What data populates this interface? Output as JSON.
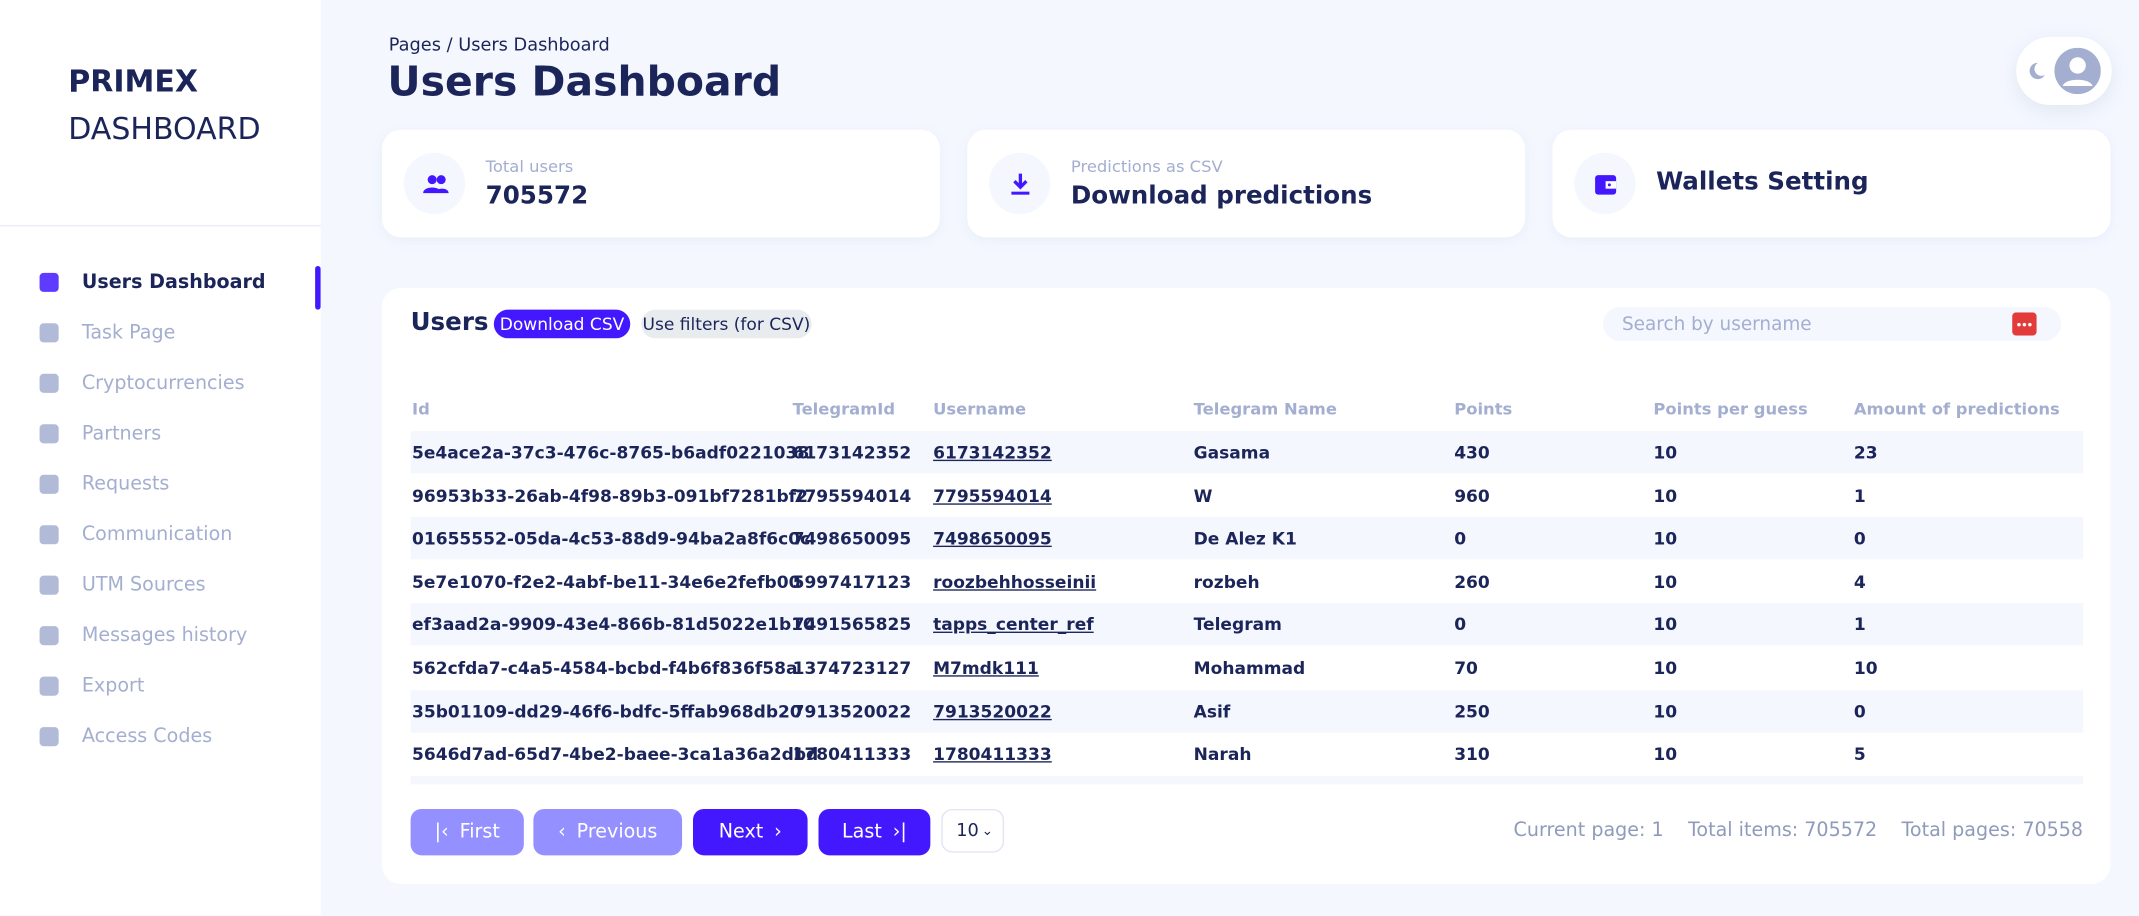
{
  "sidebar": {
    "brand_top": "PRIMEX",
    "brand_bottom": "DASHBOARD",
    "nav": [
      "Users Dashboard",
      "Task Page",
      "Cryptocurrencies",
      "Partners",
      "Requests",
      "Communication",
      "UTM Sources",
      "Messages history",
      "Export",
      "Access Codes"
    ]
  },
  "header": {
    "breadcrumb_root": "Pages",
    "breadcrumb_sep": "/",
    "breadcrumb_current": "Users Dashboard",
    "title": "Users Dashboard"
  },
  "cards": [
    {
      "label": "Total users",
      "value": "705572"
    },
    {
      "label": "Predictions as CSV",
      "value": "Download predictions"
    },
    {
      "label": "",
      "value": "Wallets Setting"
    }
  ],
  "table": {
    "title": "Users",
    "download_button": "Download CSV",
    "filters_button": "Use filters (for CSV)",
    "search_placeholder": "Search by username",
    "columns": [
      "Id",
      "TelegramId",
      "Username",
      "Telegram Name",
      "Points",
      "Points per guess",
      "Amount of predictions"
    ],
    "rows": [
      [
        "5e4ace2a-37c3-476c-8765-b6adf0221038",
        "6173142352",
        "6173142352",
        "Gasama",
        "430",
        "10",
        "23"
      ],
      [
        "96953b33-26ab-4f98-89b3-091bf7281bf2",
        "7795594014",
        "7795594014",
        "W",
        "960",
        "10",
        "1"
      ],
      [
        "01655552-05da-4c53-88d9-94ba2a8f6c0c",
        "7498650095",
        "7498650095",
        "De Alez K1",
        "0",
        "10",
        "0"
      ],
      [
        "5e7e1070-f2e2-4abf-be11-34e6e2fefb00",
        "5997417123",
        "roozbehhosseinii",
        "rozbeh",
        "260",
        "10",
        "4"
      ],
      [
        "ef3aad2a-9909-43e4-866b-81d5022e1b10",
        "7491565825",
        "tapps_center_ref",
        "Telegram",
        "0",
        "10",
        "1"
      ],
      [
        "562cfda7-c4a5-4584-bcbd-f4b6f836f58a",
        "1374723127",
        "M7mdk111",
        "Mohammad",
        "70",
        "10",
        "10"
      ],
      [
        "35b01109-dd29-46f6-bdfc-5ffab968db20",
        "7913520022",
        "7913520022",
        "Asif",
        "250",
        "10",
        "0"
      ],
      [
        "5646d7ad-65d7-4be2-baee-3ca1a36a2dbd",
        "1780411333",
        "1780411333",
        "Narah",
        "310",
        "10",
        "5"
      ]
    ]
  },
  "pagination": {
    "first": "First",
    "previous": "Previous",
    "next": "Next",
    "last": "Last",
    "page_size": "10",
    "current_page": "Current page: 1",
    "total_items": "Total items: 705572",
    "total_pages": "Total pages: 70558"
  }
}
